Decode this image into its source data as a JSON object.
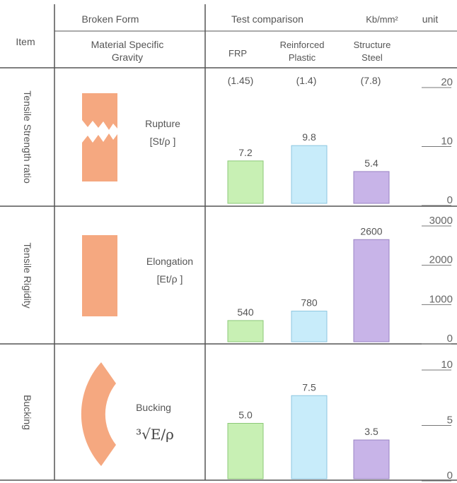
{
  "header": {
    "item": "Item",
    "broken_form": "Broken Form",
    "material_sg": [
      "Material Specific",
      "Gravity"
    ],
    "test_comparison": "Test comparison",
    "unit_kb": "Kb/mm²",
    "unit": "unit"
  },
  "materials": [
    {
      "label_lines": [
        "FRP"
      ],
      "sg": "(1.45)",
      "color": "#c8f0b4",
      "stroke": "#8cc878"
    },
    {
      "label_lines": [
        "Reinforced",
        "Plastic"
      ],
      "sg": "(1.4)",
      "color": "#c8ecfa",
      "stroke": "#8cc6e0"
    },
    {
      "label_lines": [
        "Structure",
        "Steel"
      ],
      "sg": "(7.8)",
      "color": "#c8b4e8",
      "stroke": "#9a84c4"
    }
  ],
  "rows": [
    {
      "label": "Tensile Strength ratio",
      "form_lines": [
        "Rupture",
        "[St/ρ ]"
      ],
      "shape": "rupture"
    },
    {
      "label": "Tensile Rigidity",
      "form_lines": [
        "Elongation",
        "[Et/ρ ]"
      ],
      "shape": "rect"
    },
    {
      "label": "Bucking",
      "form_lines": [
        "Bucking"
      ],
      "formula": "³√E/ρ",
      "shape": "arc"
    }
  ],
  "chart_data": [
    {
      "type": "bar",
      "row": "Tensile Strength ratio",
      "categories": [
        "FRP",
        "Reinforced Plastic",
        "Structure Steel"
      ],
      "values": [
        7.2,
        9.8,
        5.4
      ],
      "value_labels": [
        "7.2",
        "9.8",
        "5.4"
      ],
      "ylim": [
        0,
        20
      ],
      "ticks": [
        0,
        10,
        20
      ]
    },
    {
      "type": "bar",
      "row": "Tensile Rigidity",
      "categories": [
        "FRP",
        "Reinforced Plastic",
        "Structure Steel"
      ],
      "values": [
        540,
        780,
        2600
      ],
      "value_labels": [
        "540",
        "780",
        "2600"
      ],
      "ylim": [
        0,
        3000
      ],
      "ticks": [
        0,
        1000,
        2000,
        3000
      ]
    },
    {
      "type": "bar",
      "row": "Bucking",
      "categories": [
        "FRP",
        "Reinforced Plastic",
        "Structure Steel"
      ],
      "values": [
        5.0,
        7.5,
        3.5
      ],
      "value_labels": [
        "5.0",
        "7.5",
        "3.5"
      ],
      "ylim": [
        0,
        10
      ],
      "ticks": [
        0,
        5,
        10
      ]
    }
  ]
}
